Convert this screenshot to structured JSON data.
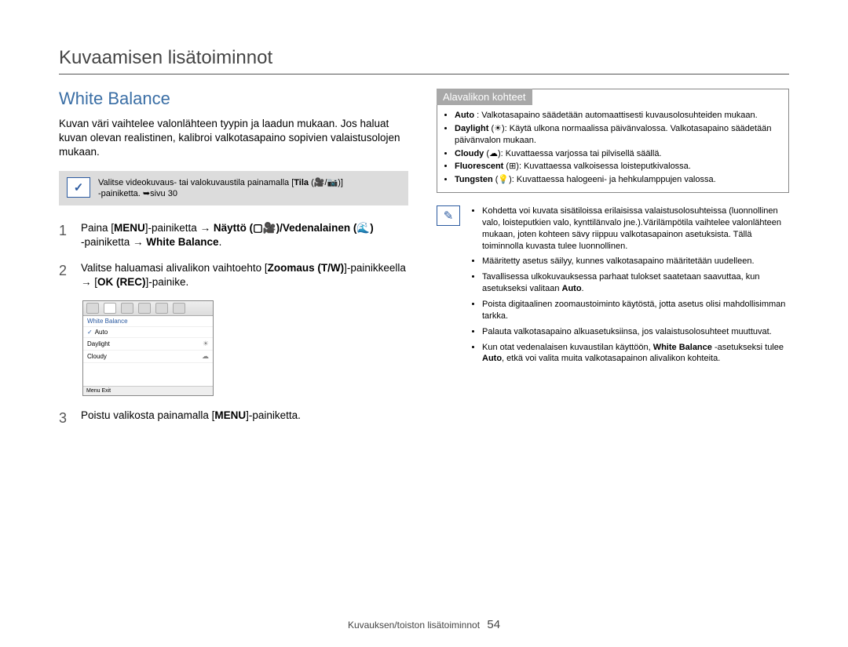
{
  "breadcrumb": "Kuvaamisen lisätoiminnot",
  "section_title": "White Balance",
  "intro": "Kuvan väri vaihtelee valonlähteen tyypin ja laadun mukaan. Jos haluat kuvan olevan realistinen, kalibroi valkotasapaino sopivien valaistusolojen mukaan.",
  "callout_icon": "✓",
  "callout_line1_pre": "Valitse videokuvaus- tai valokuvaustila painamalla [",
  "callout_tila": "Tila",
  "callout_line1_post": " (🎥/📷)]",
  "callout_line2": "-painiketta. ➥sivu 30",
  "step1_num": "1",
  "step1_a": "Paina [",
  "step1_menu": "MENU",
  "step1_b": "]-painiketta → ",
  "step1_naytto": "Näyttö (▢🎥)/Vedenalainen (🌊)",
  "step1_c": " -painiketta → ",
  "step1_wb": "White Balance",
  "step1_d": ".",
  "step2_num": "2",
  "step2_a": "Valitse haluamasi alivalikon vaihtoehto [",
  "step2_zoom": "Zoomaus (T/W)",
  "step2_b": "]-painikkeella → [",
  "step2_ok": "OK (REC)",
  "step2_c": "]-painike.",
  "step3_num": "3",
  "step3_a": "Poistu valikosta painamalla [",
  "step3_menu": "MENU",
  "step3_b": "]-painiketta.",
  "screenshot": {
    "title": "White Balance",
    "rows": [
      {
        "label": "Auto",
        "checked": true,
        "icon": ""
      },
      {
        "label": "Daylight",
        "checked": false,
        "icon": "☀"
      },
      {
        "label": "Cloudy",
        "checked": false,
        "icon": "☁"
      }
    ],
    "footer": "Menu  Exit"
  },
  "submenu_header": "Alavalikon kohteet",
  "submenu_items": [
    {
      "b": "Auto",
      "t": ": Valkotasapaino säädetään automaattisesti kuvausolosuhteiden mukaan."
    },
    {
      "b": "Daylight",
      "g": "(☀)",
      "t": ": Käytä ulkona normaalissa päivänvalossa. Valkotasapaino säädetään päivänvalon mukaan."
    },
    {
      "b": "Cloudy",
      "g": "(☁)",
      "t": ": Kuvattaessa varjossa tai pilvisellä säällä."
    },
    {
      "b": "Fluorescent",
      "g": "(⊞)",
      "t": ": Kuvattaessa valkoisessa loisteputkivalossa."
    },
    {
      "b": "Tungsten",
      "g": "(💡)",
      "t": ": Kuvattaessa halogeeni- ja hehkulamppujen valossa."
    }
  ],
  "note_icon": "✎",
  "notes": [
    "Kohdetta voi kuvata sisätiloissa erilaisissa valaistusolosuhteissa (luonnollinen valo, loisteputkien valo, kynttilänvalo jne.).Värilämpötila vaihtelee valonlähteen mukaan, joten kohteen sävy riippuu valkotasapainon asetuksista. Tällä toiminnolla kuvasta tulee luonnollinen.",
    "Määritetty asetus säilyy, kunnes valkotasapaino määritetään uudelleen.",
    {
      "pre": "Tavallisessa ulkokuvauksessa parhaat tulokset saatetaan saavuttaa, kun asetukseksi valitaan ",
      "bold": "Auto",
      "post": "."
    },
    "Poista digitaalinen zoomaustoiminto käytöstä, jotta asetus olisi mahdollisimman tarkka.",
    "Palauta valkotasapaino alkuasetuksiinsa, jos valaistusolosuhteet muuttuvat.",
    {
      "pre": "Kun otat vedenalaisen kuvaustilan käyttöön, ",
      "bold": "White Balance",
      "post": " -asetukseksi tulee ",
      "bold2": "Auto",
      "post2": ", etkä voi valita muita valkotasapainon alivalikon kohteita."
    }
  ],
  "footer_text": "Kuvauksen/toiston lisätoiminnot",
  "page_number": "54"
}
